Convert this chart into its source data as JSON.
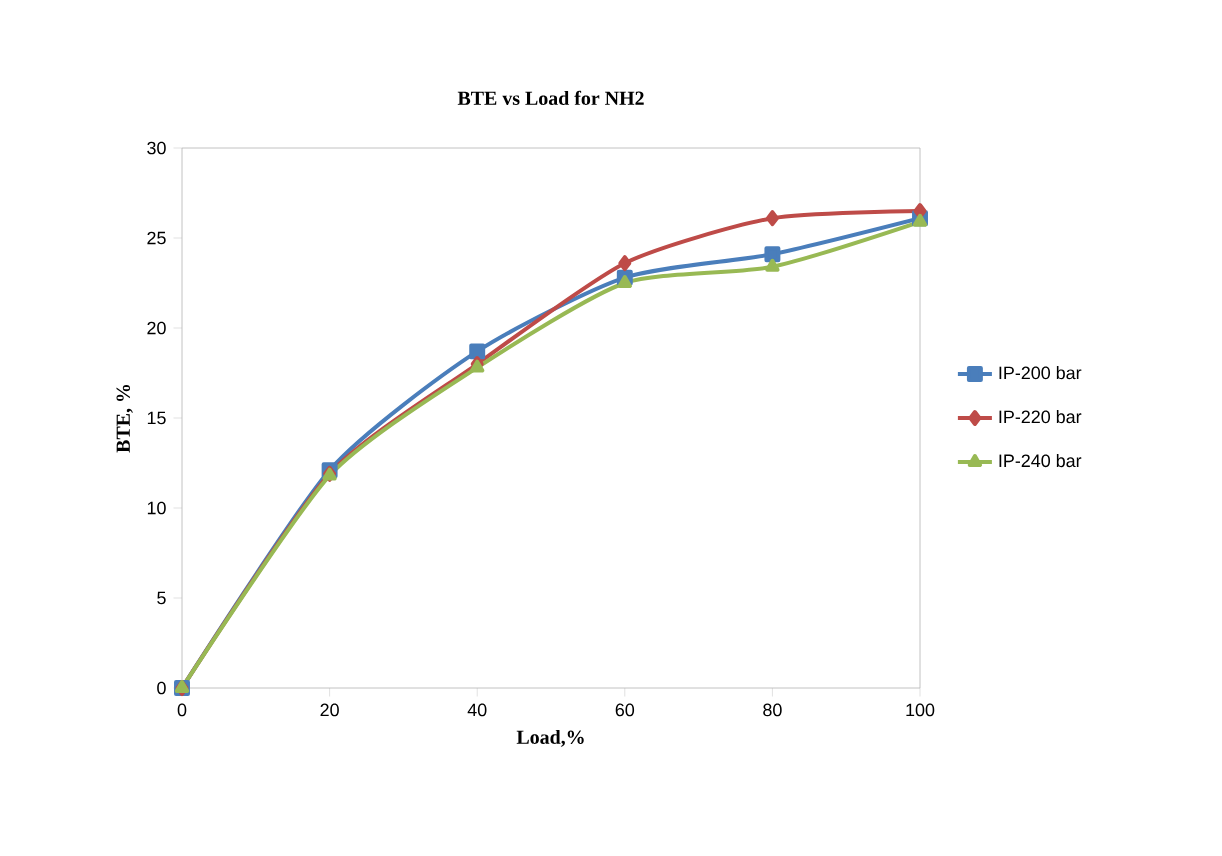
{
  "chart_data": {
    "type": "line",
    "title": "BTE vs Load for NH2",
    "xlabel": "Load,%",
    "ylabel": "BTE, %",
    "x": [
      0,
      20,
      40,
      60,
      80,
      100
    ],
    "series": [
      {
        "name": "IP-200 bar",
        "color": "#4a7ebb",
        "marker": "square",
        "values": [
          0,
          12.1,
          18.7,
          22.8,
          24.1,
          26.1
        ]
      },
      {
        "name": "IP-220 bar",
        "color": "#be4b48",
        "marker": "diamond",
        "values": [
          0,
          11.9,
          18.0,
          23.6,
          26.1,
          26.5
        ]
      },
      {
        "name": "IP-240 bar",
        "color": "#98b954",
        "marker": "triangle",
        "values": [
          0,
          11.8,
          17.8,
          22.5,
          23.4,
          25.9
        ]
      }
    ],
    "xlim": [
      0,
      100
    ],
    "xticks": [
      0,
      20,
      40,
      60,
      80,
      100
    ],
    "ylim": [
      0,
      30
    ],
    "yticks": [
      0,
      5,
      10,
      15,
      20,
      25,
      30
    ],
    "grid": false,
    "legend": "right",
    "line_style": "solid"
  }
}
